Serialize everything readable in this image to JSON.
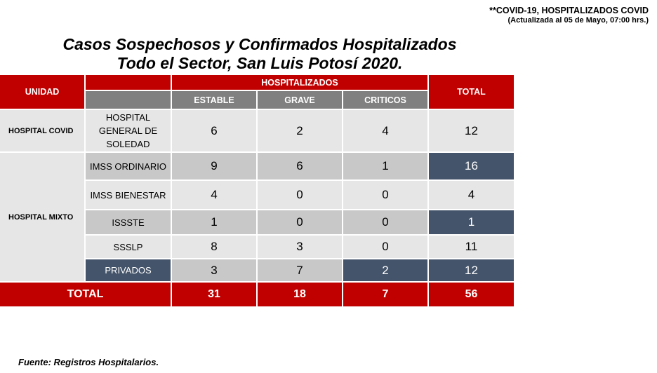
{
  "header_note": {
    "line1": "**COVID-19, HOSPITALIZADOS COVID",
    "line2": "(Actualizada al 05 de Mayo, 07:00 hrs.)"
  },
  "title": {
    "line1": "Casos Sospechosos y Confirmados Hospitalizados",
    "line2": "Todo el Sector, San Luis Potosí 2020."
  },
  "table": {
    "unidad_header": "UNIDAD",
    "hospitalizados_header": "HOSPITALIZADOS",
    "total_header": "TOTAL",
    "columns": [
      "ESTABLE",
      "GRAVE",
      "CRITICOS"
    ],
    "groups": {
      "covid": "HOSPITAL COVID",
      "mixto": "HOSPITAL MIXTO"
    },
    "rows": [
      {
        "unit": "HOSPITAL GENERAL DE SOLEDAD",
        "estable": "6",
        "grave": "2",
        "criticos": "4",
        "total": "12"
      },
      {
        "unit": "IMSS ORDINARIO",
        "estable": "9",
        "grave": "6",
        "criticos": "1",
        "total": "16"
      },
      {
        "unit": "IMSS BIENESTAR",
        "estable": "4",
        "grave": "0",
        "criticos": "0",
        "total": "4"
      },
      {
        "unit": "ISSSTE",
        "estable": "1",
        "grave": "0",
        "criticos": "0",
        "total": "1"
      },
      {
        "unit": "SSSLP",
        "estable": "8",
        "grave": "3",
        "criticos": "0",
        "total": "11"
      },
      {
        "unit": "PRIVADOS",
        "estable": "3",
        "grave": "7",
        "criticos": "2",
        "total": "12"
      }
    ],
    "totals": {
      "label": "TOTAL",
      "estable": "31",
      "grave": "18",
      "criticos": "7",
      "total": "56"
    },
    "colors": {
      "red": "#c00000",
      "gray_header": "#808080",
      "highlight": "#44546a",
      "light": "#e6e6e6",
      "mid": "#c8c8c8"
    }
  },
  "source": "Fuente: Registros Hospitalarios."
}
